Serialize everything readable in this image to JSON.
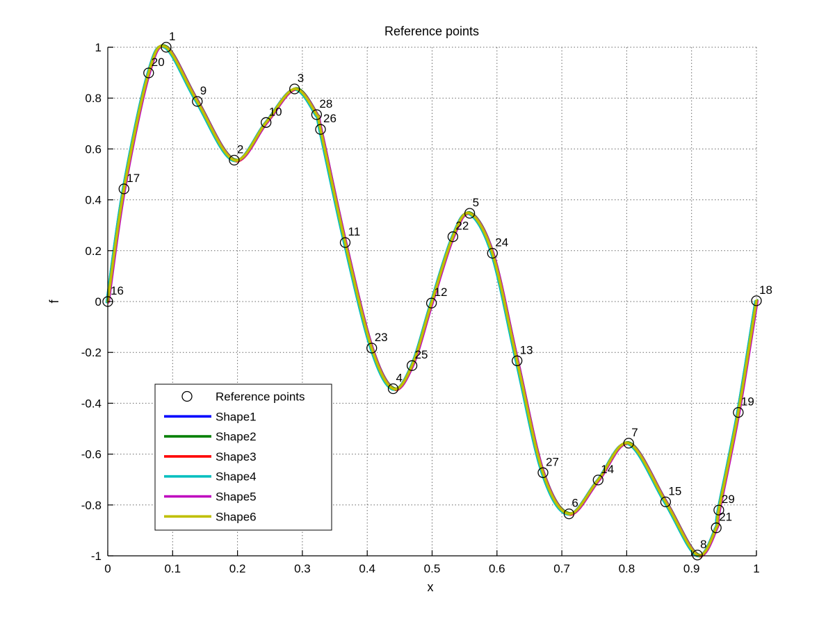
{
  "title": "Reference points",
  "chart_data": {
    "type": "line",
    "title": "Reference points",
    "xlabel": "x",
    "ylabel": "f",
    "xlim": [
      0,
      1
    ],
    "ylim": [
      -1,
      1
    ],
    "xticks": [
      "0",
      "0.1",
      "0.2",
      "0.3",
      "0.4",
      "0.5",
      "0.6",
      "0.7",
      "0.8",
      "0.9",
      "1"
    ],
    "yticks": [
      "-1",
      "-0.8",
      "-0.6",
      "-0.4",
      "-0.2",
      "0",
      "0.2",
      "0.4",
      "0.6",
      "0.8",
      "1"
    ],
    "grid": true,
    "grid_style": "dotted",
    "legend_position": "inside lower-left",
    "marker_style": "open circle",
    "series_note": "Shape1..Shape6 are six nearly identical overlapping curves through the same reference points; Shape6 (yellow) is drawn on top",
    "series": [
      {
        "name": "Shape1",
        "color": "#0000FF"
      },
      {
        "name": "Shape2",
        "color": "#007F00"
      },
      {
        "name": "Shape3",
        "color": "#FF0000"
      },
      {
        "name": "Shape4",
        "color": "#00BFBF"
      },
      {
        "name": "Shape5",
        "color": "#BF00BF"
      },
      {
        "name": "Shape6",
        "color": "#BFBF00"
      }
    ],
    "reference_points": [
      {
        "label": "16",
        "x": 0.0,
        "f": 0.0
      },
      {
        "label": "17",
        "x": 0.025,
        "f": 0.443
      },
      {
        "label": "20",
        "x": 0.063,
        "f": 0.899
      },
      {
        "label": "1",
        "x": 0.09,
        "f": 1.0
      },
      {
        "label": "9",
        "x": 0.138,
        "f": 0.787
      },
      {
        "label": "2",
        "x": 0.195,
        "f": 0.556
      },
      {
        "label": "10",
        "x": 0.244,
        "f": 0.704
      },
      {
        "label": "3",
        "x": 0.288,
        "f": 0.836
      },
      {
        "label": "28",
        "x": 0.322,
        "f": 0.735
      },
      {
        "label": "26",
        "x": 0.328,
        "f": 0.677
      },
      {
        "label": "11",
        "x": 0.366,
        "f": 0.232
      },
      {
        "label": "23",
        "x": 0.407,
        "f": -0.183
      },
      {
        "label": "4",
        "x": 0.44,
        "f": -0.343
      },
      {
        "label": "25",
        "x": 0.469,
        "f": -0.252
      },
      {
        "label": "12",
        "x": 0.499,
        "f": -0.006
      },
      {
        "label": "22",
        "x": 0.532,
        "f": 0.255
      },
      {
        "label": "5",
        "x": 0.558,
        "f": 0.347
      },
      {
        "label": "24",
        "x": 0.593,
        "f": 0.19
      },
      {
        "label": "13",
        "x": 0.631,
        "f": -0.233
      },
      {
        "label": "27",
        "x": 0.671,
        "f": -0.673
      },
      {
        "label": "6",
        "x": 0.711,
        "f": -0.835
      },
      {
        "label": "14",
        "x": 0.756,
        "f": -0.702
      },
      {
        "label": "7",
        "x": 0.803,
        "f": -0.557
      },
      {
        "label": "15",
        "x": 0.86,
        "f": -0.788
      },
      {
        "label": "8",
        "x": 0.909,
        "f": -0.997
      },
      {
        "label": "21",
        "x": 0.938,
        "f": -0.89
      },
      {
        "label": "29",
        "x": 0.942,
        "f": -0.82
      },
      {
        "label": "19",
        "x": 0.972,
        "f": -0.436
      },
      {
        "label": "18",
        "x": 1.0,
        "f": 0.003
      }
    ]
  },
  "legend": {
    "entries": [
      {
        "label": "Reference points",
        "marker": "circle",
        "color": "#000000"
      },
      {
        "label": "Shape1",
        "marker": "line",
        "color": "#0000FF"
      },
      {
        "label": "Shape2",
        "marker": "line",
        "color": "#007F00"
      },
      {
        "label": "Shape3",
        "marker": "line",
        "color": "#FF0000"
      },
      {
        "label": "Shape4",
        "marker": "line",
        "color": "#00BFBF"
      },
      {
        "label": "Shape5",
        "marker": "line",
        "color": "#BF00BF"
      },
      {
        "label": "Shape6",
        "marker": "line",
        "color": "#BFBF00"
      }
    ]
  }
}
